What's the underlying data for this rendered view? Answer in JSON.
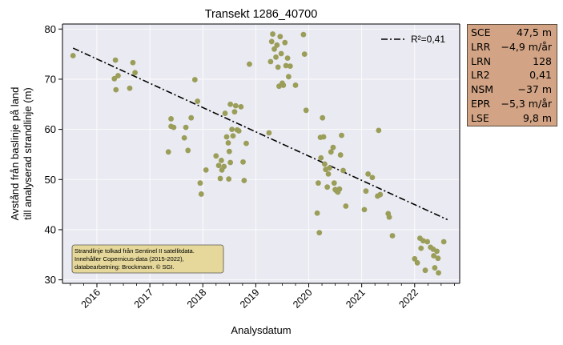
{
  "chart_data": {
    "type": "scatter",
    "title": "Transekt 1286_40700",
    "xlabel": "Analysdatum",
    "ylabel_line1": "Avstånd från baslinje på land",
    "ylabel_line2": "till analyserad strandlinje (m)",
    "xlim": [
      2015.35,
      2022.85
    ],
    "ylim": [
      29.3,
      81.0
    ],
    "xticks": [
      "2016",
      "2017",
      "2018",
      "2019",
      "2020",
      "2021",
      "2022"
    ],
    "xtick_values": [
      2016,
      2017,
      2018,
      2019,
      2020,
      2021,
      2022
    ],
    "yticks": [
      "30",
      "40",
      "50",
      "60",
      "70",
      "80"
    ],
    "ytick_values": [
      30,
      40,
      50,
      60,
      70,
      80
    ],
    "grid": true,
    "legend": {
      "placement": "top-right",
      "label": "R²=0,41"
    },
    "trend_line": {
      "x": [
        2015.55,
        2022.62
      ],
      "y": [
        76.2,
        42.0
      ],
      "style": "dash-dot",
      "color": "#000000"
    },
    "point_color": "#9a9e58",
    "points": [
      {
        "x": 2015.55,
        "y": 74.7
      },
      {
        "x": 2016.35,
        "y": 73.8
      },
      {
        "x": 2016.33,
        "y": 70.1
      },
      {
        "x": 2016.4,
        "y": 70.7
      },
      {
        "x": 2016.36,
        "y": 67.9
      },
      {
        "x": 2016.62,
        "y": 68.2
      },
      {
        "x": 2016.68,
        "y": 73.3
      },
      {
        "x": 2016.72,
        "y": 71.3
      },
      {
        "x": 2017.4,
        "y": 62.1
      },
      {
        "x": 2017.4,
        "y": 60.6
      },
      {
        "x": 2017.45,
        "y": 60.4
      },
      {
        "x": 2017.35,
        "y": 55.5
      },
      {
        "x": 2017.65,
        "y": 58.3
      },
      {
        "x": 2017.68,
        "y": 60.4
      },
      {
        "x": 2017.72,
        "y": 55.8
      },
      {
        "x": 2017.78,
        "y": 62.3
      },
      {
        "x": 2017.85,
        "y": 69.9
      },
      {
        "x": 2017.9,
        "y": 65.6
      },
      {
        "x": 2017.95,
        "y": 49.3
      },
      {
        "x": 2017.97,
        "y": 47.1
      },
      {
        "x": 2018.06,
        "y": 51.9
      },
      {
        "x": 2018.25,
        "y": 54.7
      },
      {
        "x": 2018.3,
        "y": 52.8
      },
      {
        "x": 2018.35,
        "y": 53.8
      },
      {
        "x": 2018.36,
        "y": 51.9
      },
      {
        "x": 2018.33,
        "y": 50.2
      },
      {
        "x": 2018.4,
        "y": 52.6
      },
      {
        "x": 2018.42,
        "y": 63.2
      },
      {
        "x": 2018.45,
        "y": 58.5
      },
      {
        "x": 2018.48,
        "y": 57.3
      },
      {
        "x": 2018.5,
        "y": 55.6
      },
      {
        "x": 2018.52,
        "y": 53.4
      },
      {
        "x": 2018.49,
        "y": 50.1
      },
      {
        "x": 2018.52,
        "y": 65.0
      },
      {
        "x": 2018.55,
        "y": 60.0
      },
      {
        "x": 2018.57,
        "y": 58.7
      },
      {
        "x": 2018.6,
        "y": 63.5
      },
      {
        "x": 2018.62,
        "y": 64.7
      },
      {
        "x": 2018.65,
        "y": 59.9
      },
      {
        "x": 2018.68,
        "y": 59.7
      },
      {
        "x": 2018.72,
        "y": 64.5
      },
      {
        "x": 2018.76,
        "y": 53.5
      },
      {
        "x": 2018.78,
        "y": 49.8
      },
      {
        "x": 2018.82,
        "y": 57.2
      },
      {
        "x": 2018.88,
        "y": 73.0
      },
      {
        "x": 2019.25,
        "y": 59.3
      },
      {
        "x": 2019.28,
        "y": 73.5
      },
      {
        "x": 2019.3,
        "y": 77.5
      },
      {
        "x": 2019.32,
        "y": 79.0
      },
      {
        "x": 2019.35,
        "y": 76.0
      },
      {
        "x": 2019.38,
        "y": 74.4
      },
      {
        "x": 2019.4,
        "y": 76.8
      },
      {
        "x": 2019.42,
        "y": 72.4
      },
      {
        "x": 2019.44,
        "y": 68.6
      },
      {
        "x": 2019.46,
        "y": 78.5
      },
      {
        "x": 2019.48,
        "y": 75.1
      },
      {
        "x": 2019.5,
        "y": 69.2
      },
      {
        "x": 2019.52,
        "y": 68.8
      },
      {
        "x": 2019.55,
        "y": 77.3
      },
      {
        "x": 2019.57,
        "y": 72.7
      },
      {
        "x": 2019.6,
        "y": 74.2
      },
      {
        "x": 2019.62,
        "y": 70.5
      },
      {
        "x": 2019.65,
        "y": 72.6
      },
      {
        "x": 2019.75,
        "y": 68.8
      },
      {
        "x": 2019.9,
        "y": 78.9
      },
      {
        "x": 2019.92,
        "y": 75.0
      },
      {
        "x": 2019.95,
        "y": 63.8
      },
      {
        "x": 2020.16,
        "y": 43.3
      },
      {
        "x": 2020.2,
        "y": 39.4
      },
      {
        "x": 2020.18,
        "y": 49.3
      },
      {
        "x": 2020.22,
        "y": 58.4
      },
      {
        "x": 2020.23,
        "y": 54.3
      },
      {
        "x": 2020.26,
        "y": 62.3
      },
      {
        "x": 2020.28,
        "y": 58.5
      },
      {
        "x": 2020.3,
        "y": 53.1
      },
      {
        "x": 2020.32,
        "y": 52.0
      },
      {
        "x": 2020.35,
        "y": 48.5
      },
      {
        "x": 2020.37,
        "y": 51.1
      },
      {
        "x": 2020.39,
        "y": 52.3
      },
      {
        "x": 2020.42,
        "y": 55.5
      },
      {
        "x": 2020.46,
        "y": 56.4
      },
      {
        "x": 2020.48,
        "y": 49.3
      },
      {
        "x": 2020.5,
        "y": 48.0
      },
      {
        "x": 2020.52,
        "y": 47.8
      },
      {
        "x": 2020.55,
        "y": 47.5
      },
      {
        "x": 2020.58,
        "y": 48.1
      },
      {
        "x": 2020.6,
        "y": 54.9
      },
      {
        "x": 2020.62,
        "y": 58.8
      },
      {
        "x": 2020.65,
        "y": 51.8
      },
      {
        "x": 2020.7,
        "y": 44.7
      },
      {
        "x": 2021.05,
        "y": 44.0
      },
      {
        "x": 2021.08,
        "y": 47.7
      },
      {
        "x": 2021.12,
        "y": 51.1
      },
      {
        "x": 2021.2,
        "y": 50.4
      },
      {
        "x": 2021.3,
        "y": 46.7
      },
      {
        "x": 2021.32,
        "y": 59.8
      },
      {
        "x": 2021.35,
        "y": 47.0
      },
      {
        "x": 2021.5,
        "y": 43.2
      },
      {
        "x": 2021.52,
        "y": 42.5
      },
      {
        "x": 2021.58,
        "y": 38.8
      },
      {
        "x": 2022.0,
        "y": 34.2
      },
      {
        "x": 2022.05,
        "y": 33.4
      },
      {
        "x": 2022.1,
        "y": 38.3
      },
      {
        "x": 2022.12,
        "y": 36.3
      },
      {
        "x": 2022.16,
        "y": 37.8
      },
      {
        "x": 2022.2,
        "y": 31.9
      },
      {
        "x": 2022.24,
        "y": 37.6
      },
      {
        "x": 2022.3,
        "y": 36.5
      },
      {
        "x": 2022.35,
        "y": 36.1
      },
      {
        "x": 2022.36,
        "y": 34.8
      },
      {
        "x": 2022.38,
        "y": 32.4
      },
      {
        "x": 2022.42,
        "y": 35.7
      },
      {
        "x": 2022.44,
        "y": 34.3
      },
      {
        "x": 2022.45,
        "y": 31.4
      },
      {
        "x": 2022.55,
        "y": 37.6
      }
    ],
    "annotation_lines": [
      "Strandlinje tolkad från Sentinel II satellitdata.",
      "Innehåller Copernicus-data (2015-2022),",
      "databearbetning: Brockmann. © SGI."
    ],
    "annotation_bg": "#e5d89a"
  },
  "stats": [
    {
      "key": "SCE",
      "value": "47,5 m"
    },
    {
      "key": "LRR",
      "value": "−4,9 m/år"
    },
    {
      "key": "LRN",
      "value": "128"
    },
    {
      "key": "LR2",
      "value": "0,41"
    },
    {
      "key": "NSM",
      "value": "−37 m"
    },
    {
      "key": "EPR",
      "value": "−5,3 m/år"
    },
    {
      "key": "LSE",
      "value": "9,8 m"
    }
  ],
  "colors": {
    "plot_bg": "#eaeaf2",
    "grid": "#ffffff",
    "stats_bg": "#d2a384"
  }
}
